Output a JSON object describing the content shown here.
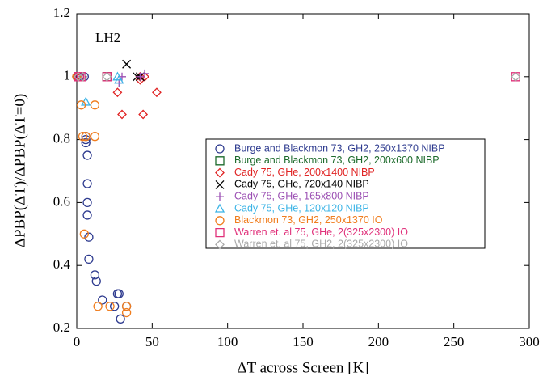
{
  "chart_data": {
    "type": "scatter",
    "x_label": "ΔT across Screen [K]",
    "y_label": "ΔPBP(ΔT)/ΔPBP(ΔT=0)",
    "annotation": "LH2",
    "xlim": [
      0,
      300
    ],
    "xticks": [
      0,
      50,
      100,
      150,
      200,
      250,
      300
    ],
    "ylim": [
      0.2,
      1.2
    ],
    "yticks": [
      0.2,
      0.4,
      0.6,
      0.8,
      1,
      1.2
    ],
    "series": [
      {
        "name": "Burge and Blackmon 73, GH2, 250x1370 NIBP",
        "color": "#2e3b8f",
        "marker": "circle",
        "x": [
          0,
          1,
          2,
          5,
          6,
          6,
          6,
          7,
          7,
          7,
          7,
          8,
          8,
          12,
          13,
          17,
          25,
          27,
          28,
          29,
          33
        ],
        "values": [
          1,
          1,
          1,
          1,
          0.81,
          0.8,
          0.79,
          0.75,
          0.66,
          0.6,
          0.56,
          0.49,
          0.42,
          0.37,
          0.35,
          0.29,
          0.27,
          0.31,
          0.31,
          0.23,
          0.27
        ]
      },
      {
        "name": "Burge and Blackmon 73, GH2, 200x600 NIBP",
        "color": "#1d6b2c",
        "marker": "square",
        "x": [
          1,
          20
        ],
        "values": [
          1,
          1
        ]
      },
      {
        "name": "Cady 75, GHe, 200x1400 NIBP",
        "color": "#e02424",
        "marker": "diamond",
        "x": [
          0,
          27,
          30,
          42,
          42,
          44,
          45,
          53
        ],
        "values": [
          1,
          0.95,
          0.88,
          1,
          0.99,
          0.88,
          1,
          0.95
        ]
      },
      {
        "name": "Cady 75, GHe, 720x140 NIBP",
        "color": "#000000",
        "marker": "x",
        "x": [
          33,
          40,
          42
        ],
        "values": [
          1.04,
          1,
          1
        ]
      },
      {
        "name": "Cady 75, GHe, 165x800 NIBP",
        "color": "#9b4fb3",
        "marker": "plus",
        "x": [
          28,
          30,
          42,
          45
        ],
        "values": [
          0.98,
          1,
          1,
          1.01
        ]
      },
      {
        "name": "Cady 75, GHe, 120x120 NIBP",
        "color": "#3cb4e6",
        "marker": "triangle",
        "x": [
          6,
          27,
          28
        ],
        "values": [
          0.92,
          1,
          0.99
        ]
      },
      {
        "name": "Blackmon 73, GH2, 250x1370 IO",
        "color": "#f07d1e",
        "marker": "circle",
        "x": [
          0,
          3,
          4,
          5,
          6,
          12,
          12,
          14,
          22,
          33,
          33
        ],
        "values": [
          1,
          0.91,
          0.81,
          0.5,
          0.81,
          0.91,
          0.81,
          0.27,
          0.27,
          0.27,
          0.25
        ]
      },
      {
        "name": "Warren et. al 75, GHe, 2(325x2300) IO",
        "color": "#e0307a",
        "marker": "square",
        "x": [
          1,
          2,
          3,
          20,
          291
        ],
        "values": [
          1,
          1,
          1,
          1,
          1
        ]
      },
      {
        "name": "Warren et. al 75, GH2, 2(325x2300) IO",
        "color": "#aaaaaa",
        "marker": "diamond",
        "x": [
          1,
          4,
          20,
          291
        ],
        "values": [
          1,
          1,
          1,
          1
        ]
      }
    ]
  }
}
